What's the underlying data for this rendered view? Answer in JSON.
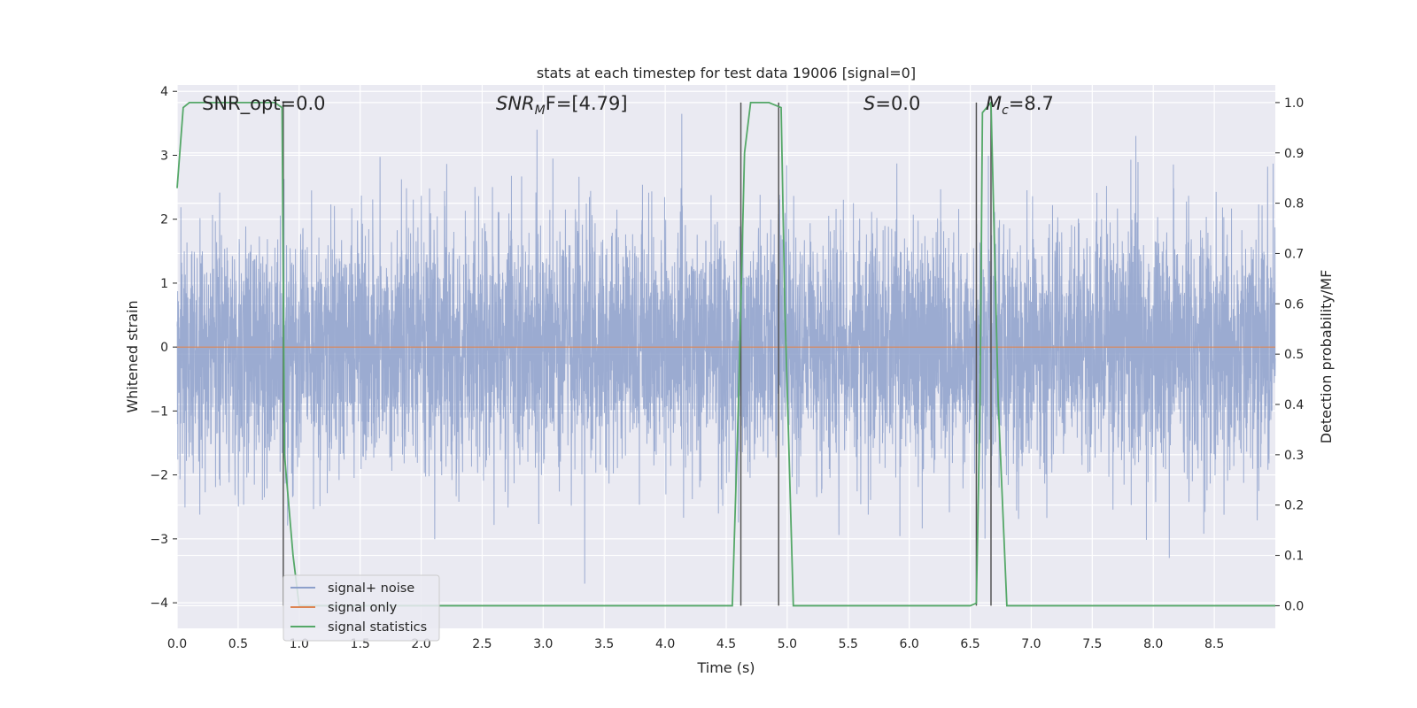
{
  "chart_data": {
    "type": "line",
    "title": "stats at each timestep for test data 19006 [signal=0]",
    "xlabel": "Time (s)",
    "ylabel": "Whitened strain",
    "y2label": "Detection probability/MF",
    "xlim": [
      0.0,
      9.0
    ],
    "ylim": [
      -4.4,
      4.1
    ],
    "y2lim": [
      -0.045,
      1.035
    ],
    "x_ticks": [
      "0.0",
      "0.5",
      "1.0",
      "1.5",
      "2.0",
      "2.5",
      "3.0",
      "3.5",
      "4.0",
      "4.5",
      "5.0",
      "5.5",
      "6.0",
      "6.5",
      "7.0",
      "7.5",
      "8.0",
      "8.5"
    ],
    "y_ticks": [
      "4",
      "3",
      "2",
      "1",
      "0",
      "−1",
      "−2",
      "−3",
      "−4"
    ],
    "y2_ticks": [
      "1.0",
      "0.9",
      "0.8",
      "0.7",
      "0.6",
      "0.5",
      "0.4",
      "0.3",
      "0.2",
      "0.1",
      "0.0"
    ],
    "grid": true,
    "legend_position": "lower-left",
    "annotations": {
      "snr_opt": "SNR_opt=0.0",
      "snr_mf_prefix": "SNR",
      "snr_mf_sub": "M",
      "snr_mf_suffix": "F=[4.79]",
      "s_prefix": "S",
      "s_suffix": "=0.0",
      "mc_prefix": "M",
      "mc_sub": "c",
      "mc_suffix": "=8.7"
    },
    "series": [
      {
        "name": "signal+ noise",
        "color": "#8da0cb",
        "kind": "noise",
        "sample_rate_hz": 2048,
        "typical_range": [
          -2.3,
          2.3
        ],
        "extreme_range": [
          -3.7,
          3.8
        ]
      },
      {
        "name": "signal only",
        "color": "#dd8452",
        "kind": "constant",
        "value": 0
      },
      {
        "name": "signal statistics",
        "color": "#55a868",
        "axis": "right",
        "x": [
          0.0,
          0.05,
          0.1,
          0.6,
          0.8,
          0.86,
          0.88,
          0.95,
          1.0,
          1.5,
          2.0,
          2.5,
          3.0,
          3.5,
          4.0,
          4.5,
          4.55,
          4.6,
          4.65,
          4.7,
          4.85,
          4.95,
          4.98,
          5.05,
          5.5,
          6.0,
          6.5,
          6.55,
          6.58,
          6.6,
          6.67,
          6.73,
          6.8,
          7.0,
          7.5,
          8.0,
          8.5,
          9.0
        ],
        "values": [
          0.83,
          0.99,
          1.0,
          1.0,
          1.0,
          0.99,
          0.3,
          0.1,
          0.0,
          0.0,
          0.0,
          0.0,
          0.0,
          0.0,
          0.0,
          0.0,
          0.0,
          0.4,
          0.9,
          1.0,
          1.0,
          0.99,
          0.6,
          0.0,
          0.0,
          0.0,
          0.0,
          0.005,
          0.4,
          0.98,
          1.0,
          0.4,
          0.0,
          0.0,
          0.0,
          0.0,
          0.0,
          0.0
        ]
      }
    ],
    "vertical_markers": [
      {
        "x": 0.87,
        "y_top": 1.0
      },
      {
        "x": 4.62,
        "y_top": 1.0
      },
      {
        "x": 4.93,
        "y_top": 1.0
      },
      {
        "x": 6.55,
        "y_top": 1.0
      },
      {
        "x": 6.67,
        "y_top": 1.0
      }
    ],
    "colors": {
      "plot_background": "#eaeaf2",
      "grid": "#ffffff",
      "marker_line": "#555555"
    }
  }
}
